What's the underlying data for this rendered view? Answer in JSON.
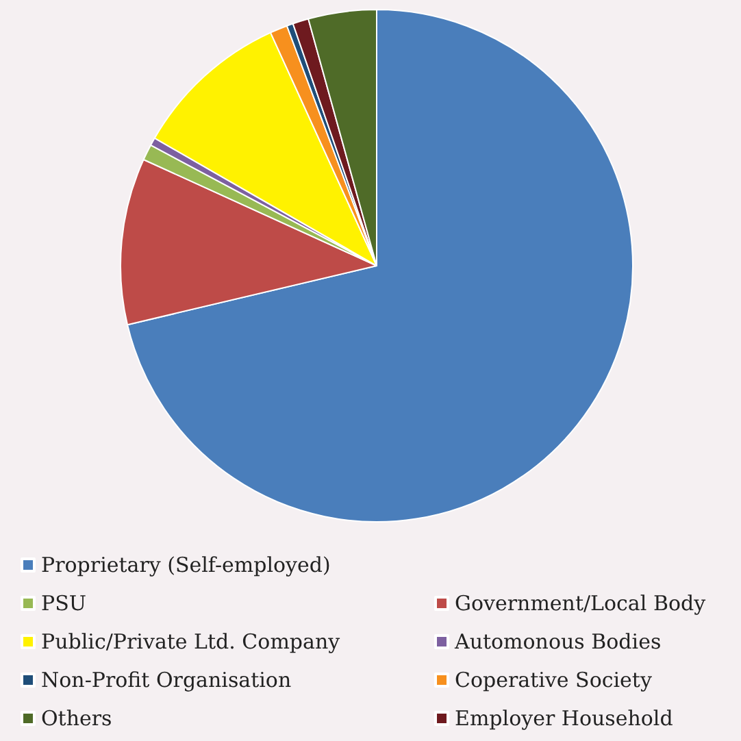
{
  "chart_data": {
    "type": "pie",
    "categories": [
      "Proprietary (Self-employed)",
      "Government/Local Body",
      "PSU",
      "Automonous Bodies",
      "Public/Private Ltd. Company",
      "Coperative Society",
      "Non-Profit Organisation",
      "Employer Household",
      "Others"
    ],
    "values": [
      71.3,
      10.5,
      1.0,
      0.5,
      9.9,
      1.1,
      0.4,
      1.0,
      4.3
    ],
    "colors": [
      "#4a7ebb",
      "#be4b48",
      "#98b954",
      "#7d60a0",
      "#fff200",
      "#f7901e",
      "#1f4e79",
      "#6e1a1f",
      "#4f6b28"
    ],
    "legend": "bottom"
  }
}
